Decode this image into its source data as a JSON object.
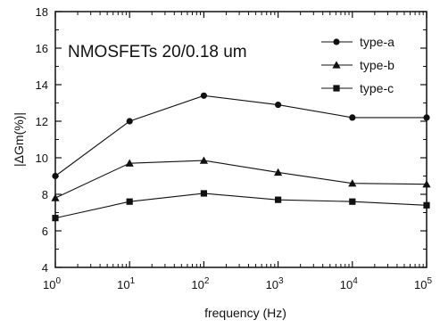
{
  "chart_data": {
    "type": "line",
    "title": "",
    "annotation": "NMOSFETs 20/0.18 um",
    "xlabel": "frequency (Hz)",
    "ylabel": "|ΔGm(%)|",
    "x_scale": "log",
    "x": [
      1,
      10,
      100,
      1000,
      10000,
      100000
    ],
    "x_ticks": [
      {
        "value": 1,
        "base": "10",
        "exp": "0"
      },
      {
        "value": 10,
        "base": "10",
        "exp": "1"
      },
      {
        "value": 100,
        "base": "10",
        "exp": "2"
      },
      {
        "value": 1000,
        "base": "10",
        "exp": "3"
      },
      {
        "value": 10000,
        "base": "10",
        "exp": "4"
      },
      {
        "value": 100000,
        "base": "10",
        "exp": "5"
      }
    ],
    "ylim": [
      4,
      18
    ],
    "y_ticks": [
      "4",
      "6",
      "8",
      "10",
      "12",
      "14",
      "16",
      "18"
    ],
    "legend_position": "top-right",
    "series": [
      {
        "name": "type-a",
        "marker": "circle",
        "values": [
          9.0,
          12.0,
          13.4,
          12.9,
          12.2,
          12.2
        ]
      },
      {
        "name": "type-b",
        "marker": "triangle",
        "values": [
          7.8,
          9.7,
          9.85,
          9.2,
          8.6,
          8.55
        ]
      },
      {
        "name": "type-c",
        "marker": "square",
        "values": [
          6.7,
          7.6,
          8.05,
          7.7,
          7.6,
          7.4
        ]
      }
    ]
  }
}
